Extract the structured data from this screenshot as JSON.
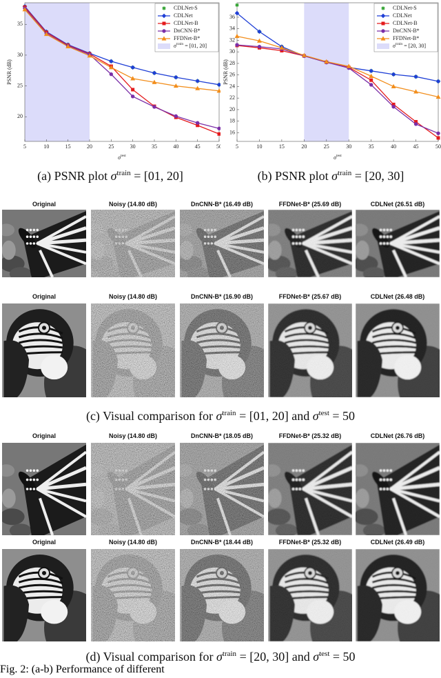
{
  "chart_data": [
    {
      "type": "line",
      "ylabel": "PSNR (dB)",
      "xlabel": {
        "sym": "σ",
        "sup": "test"
      },
      "x": [
        5,
        10,
        15,
        20,
        25,
        30,
        35,
        40,
        45,
        50
      ],
      "xlim": [
        5,
        50
      ],
      "xticks": [
        5,
        10,
        15,
        20,
        25,
        30,
        35,
        40,
        45,
        50
      ],
      "ylim": [
        16,
        38.5
      ],
      "yticks": [
        20,
        25,
        30,
        35
      ],
      "grid": false,
      "legend": "upper right",
      "band": {
        "x": [
          5,
          20
        ],
        "color": "#dcdcfa",
        "label": {
          "sym": "σ",
          "sup": "train",
          "text": " = [01, 20]"
        }
      },
      "series": [
        {
          "name": "CDLNet-S",
          "color": "#2ca02c",
          "marker": "star",
          "line": false,
          "values": [
            37.9,
            33.8,
            31.7,
            30.3,
            29.0,
            28.0,
            27.1,
            26.4,
            25.8,
            25.2
          ]
        },
        {
          "name": "CDLNet",
          "color": "#1f3fd6",
          "marker": "diamond",
          "line": true,
          "values": [
            37.9,
            33.8,
            31.7,
            30.3,
            29.0,
            28.0,
            27.1,
            26.4,
            25.8,
            25.2
          ]
        },
        {
          "name": "CDLNet-B",
          "color": "#e41a1c",
          "marker": "square",
          "line": true,
          "values": [
            37.8,
            33.7,
            31.6,
            30.2,
            28.2,
            24.4,
            21.7,
            19.9,
            18.6,
            17.2
          ]
        },
        {
          "name": "DnCNN-B*",
          "color": "#7b2fa8",
          "marker": "circle",
          "line": true,
          "values": [
            37.6,
            33.5,
            31.5,
            30.1,
            26.9,
            23.3,
            21.6,
            20.1,
            19.0,
            18.1
          ]
        },
        {
          "name": "FFDNet-B*",
          "color": "#f28e1c",
          "marker": "triangle",
          "line": true,
          "values": [
            37.4,
            33.4,
            31.4,
            29.9,
            28.0,
            26.2,
            25.6,
            25.0,
            24.6,
            24.2
          ]
        }
      ],
      "caption": [
        "(a) PSNR plot ",
        {
          "sym": "σ",
          "sup": "train"
        },
        " = [01, 20]"
      ]
    },
    {
      "type": "line",
      "ylabel": "PSNR (dB)",
      "xlabel": {
        "sym": "σ",
        "sup": "test"
      },
      "x": [
        5,
        10,
        15,
        20,
        25,
        30,
        35,
        40,
        45,
        50
      ],
      "xlim": [
        5,
        50
      ],
      "xticks": [
        5,
        10,
        15,
        20,
        25,
        30,
        35,
        40,
        45,
        50
      ],
      "ylim": [
        14.5,
        38.5
      ],
      "yticks": [
        16,
        18,
        20,
        22,
        24,
        26,
        28,
        30,
        32,
        34,
        36
      ],
      "grid": false,
      "legend": "upper right",
      "band": {
        "x": [
          20,
          30
        ],
        "color": "#dcdcfa",
        "label": {
          "sym": "σ",
          "sup": "train",
          "text": " = [20, 30]"
        }
      },
      "series": [
        {
          "name": "CDLNet-S",
          "color": "#2ca02c",
          "marker": "star",
          "line": false,
          "values": [
            38.1,
            33.5,
            30.9,
            29.3,
            28.2,
            27.3,
            26.7,
            26.1,
            25.7,
            24.9
          ]
        },
        {
          "name": "CDLNet",
          "color": "#1f3fd6",
          "marker": "diamond",
          "line": true,
          "values": [
            36.7,
            33.5,
            30.9,
            29.3,
            28.2,
            27.3,
            26.7,
            26.1,
            25.7,
            24.9
          ]
        },
        {
          "name": "CDLNet-B",
          "color": "#e41a1c",
          "marker": "square",
          "line": true,
          "values": [
            31.1,
            30.7,
            30.2,
            29.3,
            28.2,
            27.3,
            25.1,
            20.9,
            17.9,
            15.1
          ]
        },
        {
          "name": "DnCNN-B*",
          "color": "#7b2fa8",
          "marker": "circle",
          "line": true,
          "values": [
            31.2,
            30.9,
            30.5,
            29.3,
            28.2,
            27.2,
            24.3,
            20.5,
            17.5,
            15.9
          ]
        },
        {
          "name": "FFDNet-B*",
          "color": "#f28e1c",
          "marker": "triangle",
          "line": true,
          "values": [
            32.7,
            31.9,
            30.7,
            29.4,
            28.3,
            27.5,
            25.8,
            24.0,
            23.1,
            22.2
          ]
        }
      ],
      "caption": [
        "(b) PSNR plot ",
        {
          "sym": "σ",
          "sup": "train"
        },
        " = [20, 30]"
      ]
    }
  ],
  "panels": [
    {
      "rows": [
        {
          "labels": [
            "Original",
            "Noisy (14.80 dB)",
            "DnCNN-B* (16.49 dB)",
            "FFDNet-B* (25.69 dB)",
            "CDLNet (26.51 dB)"
          ]
        },
        {
          "labels": [
            "Original",
            "Noisy (14.80 dB)",
            "DnCNN-B* (16.90 dB)",
            "FFDNet-B* (25.67 dB)",
            "CDLNet (26.48 dB)"
          ]
        }
      ],
      "caption": [
        "(c) Visual comparison for ",
        {
          "sym": "σ",
          "sup": "train"
        },
        " = [01, 20] and ",
        {
          "sym": "σ",
          "sup": "test"
        },
        " = 50"
      ]
    },
    {
      "rows": [
        {
          "labels": [
            "Original",
            "Noisy (14.80 dB)",
            "DnCNN-B* (18.05 dB)",
            "FFDNet-B* (25.32 dB)",
            "CDLNet (26.76 dB)"
          ]
        },
        {
          "labels": [
            "Original",
            "Noisy (14.80 dB)",
            "DnCNN-B* (18.44 dB)",
            "FFDNet-B* (25.32 dB)",
            "CDLNet (26.49 dB)"
          ]
        }
      ],
      "caption": [
        "(d) Visual comparison for ",
        {
          "sym": "σ",
          "sup": "train"
        },
        " = [20, 30] and ",
        {
          "sym": "σ",
          "sup": "test"
        },
        " = 50"
      ]
    }
  ],
  "figure_text": "Fig. 2: (a-b) Performance of different"
}
